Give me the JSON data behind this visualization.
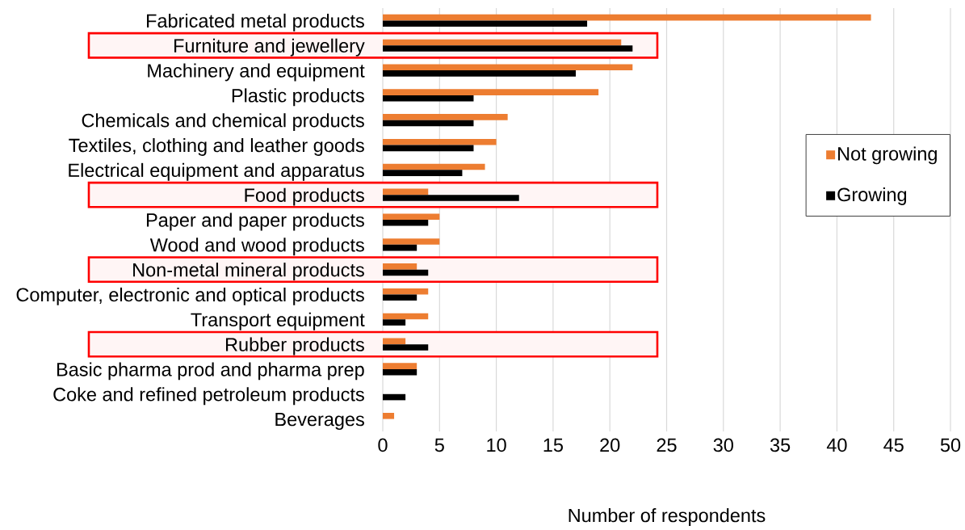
{
  "chart_data": {
    "type": "bar",
    "orientation": "horizontal",
    "categories": [
      "Fabricated metal products",
      "Furniture and jewellery",
      "Machinery and equipment",
      "Plastic products",
      "Chemicals and chemical products",
      "Textiles, clothing and leather goods",
      "Electrical equipment and apparatus",
      "Food products",
      "Paper and paper products",
      "Wood and wood products",
      "Non-metal mineral products",
      "Computer, electronic and optical products",
      "Transport equipment",
      "Rubber products",
      "Basic pharma prod and pharma prep",
      "Coke and refined petroleum products",
      "Beverages"
    ],
    "series": [
      {
        "name": "Not growing",
        "color": "#ed7d31",
        "values": [
          43,
          21,
          22,
          19,
          11,
          10,
          9,
          4,
          5,
          5,
          3,
          4,
          4,
          2,
          3,
          0,
          1
        ]
      },
      {
        "name": "Growing",
        "color": "#000000",
        "values": [
          18,
          22,
          17,
          8,
          8,
          8,
          7,
          12,
          4,
          3,
          4,
          3,
          2,
          4,
          3,
          2,
          0
        ]
      }
    ],
    "xlabel": "Number of respondents",
    "xlim": [
      0,
      50
    ],
    "xticks": [
      0,
      5,
      10,
      15,
      20,
      25,
      30,
      35,
      40,
      45,
      50
    ],
    "grid": "x",
    "legend": "right",
    "bands": [
      {
        "axis": "y",
        "from": "Furniture and jewellery",
        "to": "Furniture and jewellery",
        "color": "#ff0000"
      },
      {
        "axis": "y",
        "from": "Food products",
        "to": "Food products",
        "color": "#ff0000"
      },
      {
        "axis": "y",
        "from": "Non-metal mineral products",
        "to": "Non-metal mineral products",
        "color": "#ff0000"
      },
      {
        "axis": "y",
        "from": "Rubber products",
        "to": "Rubber products",
        "color": "#ff0000"
      }
    ]
  }
}
